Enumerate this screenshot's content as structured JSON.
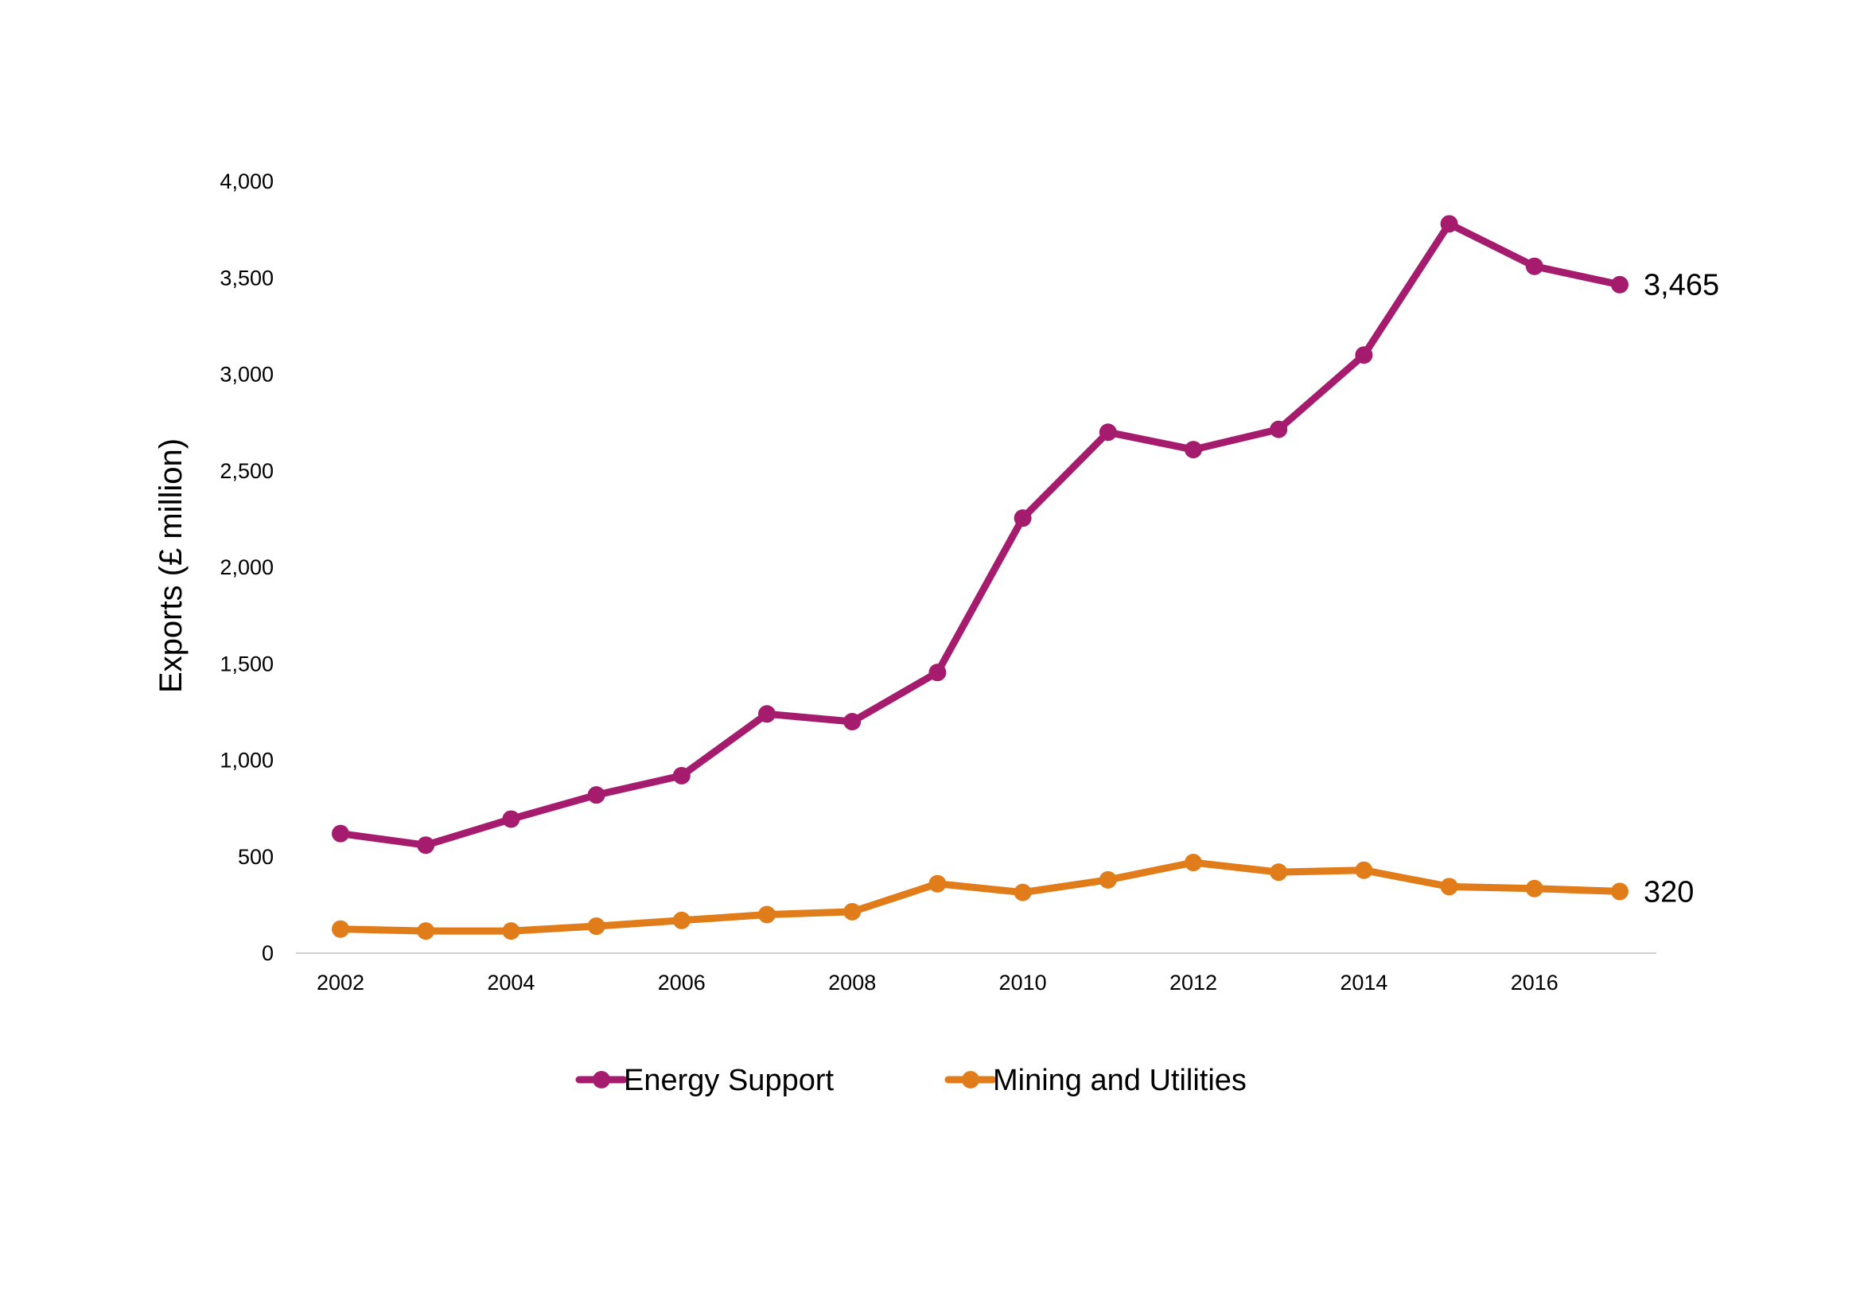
{
  "chart_data": {
    "type": "line",
    "title": "",
    "xlabel": "",
    "ylabel": "Exports (£ million)",
    "x": [
      2002,
      2003,
      2004,
      2005,
      2006,
      2007,
      2008,
      2009,
      2010,
      2011,
      2012,
      2013,
      2014,
      2015,
      2016,
      2017
    ],
    "x_ticks": [
      "2002",
      "2004",
      "2006",
      "2008",
      "2010",
      "2012",
      "2014",
      "2016"
    ],
    "y_ticks": [
      "0",
      "500",
      "1,000",
      "1,500",
      "2,000",
      "2,500",
      "3,000",
      "3,500",
      "4,000"
    ],
    "ylim": [
      0,
      4000
    ],
    "grid": false,
    "legend_position": "bottom",
    "series": [
      {
        "name": "Energy Support",
        "color": "#A51C6E",
        "values": [
          620,
          560,
          695,
          820,
          920,
          1240,
          1200,
          1455,
          2255,
          2700,
          2610,
          2715,
          3100,
          3780,
          3560,
          3465
        ],
        "end_label": "3,465"
      },
      {
        "name": "Mining and Utilities",
        "color": "#E07D1A",
        "values": [
          125,
          115,
          115,
          140,
          170,
          200,
          215,
          360,
          315,
          380,
          470,
          420,
          430,
          345,
          335,
          320
        ],
        "end_label": "320"
      }
    ]
  }
}
